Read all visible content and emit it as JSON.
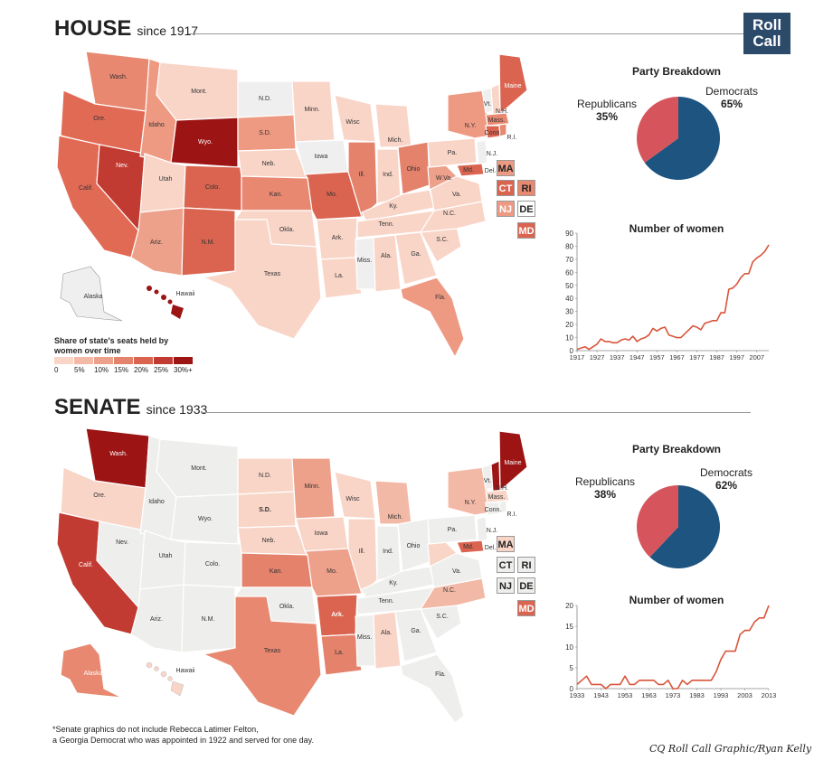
{
  "house": {
    "title": "HOUSE",
    "subtitle": "since 1917",
    "party": {
      "title": "Party Breakdown",
      "rep_label": "Republicans",
      "rep_pct": "35%",
      "rep_value": 35,
      "dem_label": "Democrats",
      "dem_pct": "65%",
      "dem_value": 65,
      "rep_color": "#d6555c",
      "dem_color": "#1d5480"
    },
    "chart_title": "Number of women",
    "map_labels": [
      "Wash.",
      "Ore.",
      "Calif.",
      "Nev.",
      "Idaho",
      "Mont.",
      "Wyo.",
      "Utah",
      "Colo.",
      "Ariz.",
      "N.M.",
      "N.D.",
      "S.D.",
      "Neb.",
      "Kan.",
      "Okla.",
      "Texas",
      "Minn.",
      "Iowa",
      "Mo.",
      "Ark.",
      "La.",
      "Wisc",
      "Ill.",
      "Mich.",
      "Ind.",
      "Ohio",
      "Ky.",
      "Tenn.",
      "Miss.",
      "Ala.",
      "Ga.",
      "Fla.",
      "S.C.",
      "N.C.",
      "Va.",
      "W.Va.",
      "Pa.",
      "N.Y.",
      "Vt.",
      "N.H.",
      "Maine",
      "Mass.",
      "Conn.",
      "R.I.",
      "N.J.",
      "Del.",
      "Md.",
      "Alaska",
      "Hawaii"
    ],
    "chips": [
      "MA",
      "CT",
      "RI",
      "NJ",
      "DE",
      "MD"
    ],
    "legend": {
      "title": "Share of state's seats held by women over time",
      "ticks": [
        "0",
        "5%",
        "10%",
        "15%",
        "20%",
        "25%",
        "30%+"
      ],
      "colors": [
        "#f9d5c8",
        "#f3b9a7",
        "#eda08a",
        "#e5826c",
        "#da6450",
        "#c23b32",
        "#9c1414"
      ]
    }
  },
  "senate": {
    "title": "SENATE",
    "subtitle": "since 1933",
    "party": {
      "title": "Party Breakdown",
      "rep_label": "Republicans",
      "rep_pct": "38%",
      "rep_value": 38,
      "dem_label": "Democrats",
      "dem_pct": "62%",
      "dem_value": 62,
      "rep_color": "#d6555c",
      "dem_color": "#1d5480"
    },
    "chart_title": "Number of women",
    "map_labels": [
      "Wash.",
      "Ore.",
      "Calif.",
      "Nev.",
      "Idaho",
      "Mont.",
      "Wyo.",
      "Utah",
      "Colo.",
      "Ariz.",
      "N.M.",
      "N.D.",
      "S.D.",
      "Neb.",
      "Kan.",
      "Okla.",
      "Texas",
      "Minn.",
      "Iowa",
      "Mo.",
      "Ark.",
      "La.",
      "Wisc",
      "Ill.",
      "Mich.",
      "Ind.",
      "Ohio",
      "Ky.",
      "Tenn.",
      "Miss.",
      "Ala.",
      "Ga.",
      "Fla.",
      "S.C.",
      "N.C.",
      "Va.",
      "Pa.",
      "N.Y.",
      "Vt.",
      "N.H.",
      "Maine",
      "Mass.",
      "Conn.",
      "R.I.",
      "N.J.",
      "Del.",
      "Md.",
      "Alaska",
      "Hawaii"
    ],
    "chips": [
      "MA",
      "CT",
      "RI",
      "NJ",
      "DE",
      "MD"
    ]
  },
  "logo": {
    "line1": "Roll",
    "line2": "Call"
  },
  "footnote": {
    "line1": "*Senate graphics do not include Rebecca Latimer Felton,",
    "line2": "a Georgia Democrat who was appointed in 1922 and served for one day."
  },
  "credit": "CQ Roll Call Graphic/Ryan Kelly",
  "chart_data": [
    {
      "type": "line",
      "title": "Number of women",
      "x": [
        1917,
        1921,
        1923,
        1925,
        1927,
        1929,
        1931,
        1933,
        1935,
        1937,
        1939,
        1941,
        1943,
        1945,
        1947,
        1949,
        1951,
        1953,
        1955,
        1957,
        1959,
        1961,
        1963,
        1965,
        1967,
        1969,
        1971,
        1973,
        1975,
        1977,
        1979,
        1981,
        1983,
        1985,
        1987,
        1989,
        1991,
        1993,
        1995,
        1997,
        1999,
        2001,
        2003,
        2005,
        2007,
        2009,
        2011,
        2013
      ],
      "series": [
        {
          "values": [
            1,
            3,
            1,
            3,
            5,
            9,
            7,
            7,
            6,
            6,
            8,
            9,
            8,
            11,
            7,
            9,
            10,
            12,
            17,
            15,
            17,
            18,
            12,
            11,
            10,
            10,
            13,
            16,
            19,
            18,
            16,
            21,
            22,
            23,
            23,
            29,
            29,
            47,
            48,
            51,
            56,
            59,
            59,
            68,
            71,
            73,
            76,
            81
          ]
        }
      ],
      "xticks": [
        1917,
        1927,
        1937,
        1947,
        1957,
        1967,
        1977,
        1987,
        1997,
        2007
      ],
      "yticks": [
        0,
        10,
        20,
        30,
        40,
        50,
        60,
        70,
        80,
        90
      ],
      "xlim": [
        1917,
        2013
      ],
      "ylim": [
        0,
        90
      ],
      "color": "#d8553a"
    },
    {
      "type": "line",
      "title": "Number of women",
      "x": [
        1933,
        1935,
        1937,
        1939,
        1941,
        1943,
        1945,
        1947,
        1949,
        1951,
        1953,
        1955,
        1957,
        1959,
        1961,
        1963,
        1965,
        1967,
        1969,
        1971,
        1973,
        1975,
        1977,
        1979,
        1981,
        1983,
        1985,
        1987,
        1989,
        1991,
        1993,
        1995,
        1997,
        1999,
        2001,
        2003,
        2005,
        2007,
        2009,
        2011,
        2013
      ],
      "series": [
        {
          "values": [
            1,
            2,
            3,
            1,
            1,
            1,
            0,
            1,
            1,
            1,
            3,
            1,
            1,
            2,
            2,
            2,
            2,
            1,
            1,
            2,
            0,
            0,
            2,
            1,
            2,
            2,
            2,
            2,
            2,
            4,
            7,
            9,
            9,
            9,
            13,
            14,
            14,
            16,
            17,
            17,
            20
          ]
        }
      ],
      "xticks": [
        1933,
        1943,
        1953,
        1963,
        1973,
        1983,
        1993,
        2003,
        2013
      ],
      "yticks": [
        0,
        5,
        10,
        15,
        20
      ],
      "xlim": [
        1933,
        2013
      ],
      "ylim": [
        0,
        20
      ],
      "color": "#d8553a"
    }
  ]
}
